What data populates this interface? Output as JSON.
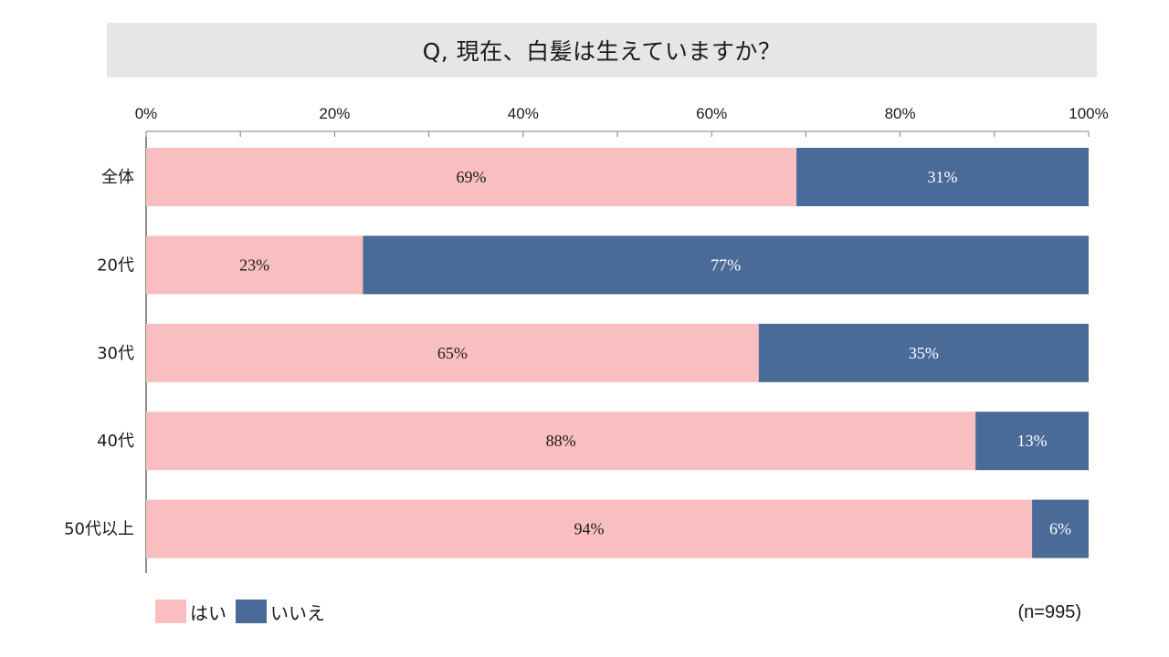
{
  "title": "Q, 現在、白髪は生えていますか？",
  "note": "(n=995)",
  "colors": {
    "yes": "#f9bfc0",
    "no": "#4a6a98",
    "title_bg": "#e6e6e6"
  },
  "legend": [
    {
      "label": "はい",
      "color": "#f9bfc0"
    },
    {
      "label": "いいえ",
      "color": "#4a6a98"
    }
  ],
  "chart_data": {
    "type": "bar",
    "orientation": "horizontal",
    "stacked": true,
    "percent": true,
    "title": "Q, 現在、白髪は生えていますか？",
    "categories": [
      "全体",
      "20代",
      "30代",
      "40代",
      "50代以上"
    ],
    "series": [
      {
        "name": "はい",
        "values": [
          69,
          23,
          65,
          88,
          94
        ],
        "labels": [
          "69%",
          "23%",
          "65%",
          "88%",
          "94%"
        ]
      },
      {
        "name": "いいえ",
        "values": [
          31,
          77,
          35,
          13,
          6
        ],
        "labels": [
          "31%",
          "77%",
          "35%",
          "13%",
          "6%"
        ]
      }
    ],
    "xlim": [
      0,
      100
    ],
    "xticks": [
      "0%",
      "20%",
      "40%",
      "60%",
      "80%",
      "100%"
    ],
    "axis_position": "top",
    "grid": false,
    "legend_position": "bottom-left"
  }
}
